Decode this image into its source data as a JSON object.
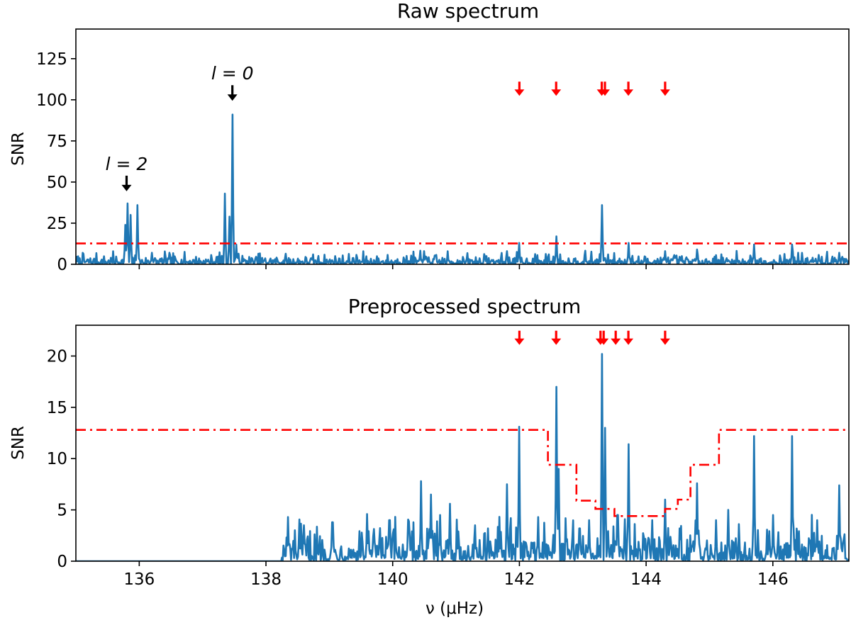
{
  "chart_data": [
    {
      "type": "line",
      "title": "Raw spectrum",
      "xlabel": "",
      "ylabel": "SNR",
      "xlim": [
        135,
        147.2
      ],
      "ylim": [
        0,
        143
      ],
      "xticks": [
        136,
        138,
        140,
        142,
        144,
        146
      ],
      "xtick_labels_shown": false,
      "yticks": [
        0,
        25,
        50,
        75,
        100,
        125
      ],
      "ytick_labels": [
        "0",
        "25",
        "50",
        "75",
        "100",
        "125"
      ],
      "grid": false,
      "series_color": "#1f77b4",
      "threshold": {
        "style": "dash-dot",
        "color": "#ff0000",
        "value": 12.7
      },
      "baseline": {
        "x_start": 135,
        "x_end": 147.2,
        "level": 2
      },
      "peaks": [
        {
          "x": 135.78,
          "y": 24
        },
        {
          "x": 135.82,
          "y": 37
        },
        {
          "x": 135.86,
          "y": 30
        },
        {
          "x": 135.97,
          "y": 36
        },
        {
          "x": 136.2,
          "y": 7
        },
        {
          "x": 137.35,
          "y": 43
        },
        {
          "x": 137.42,
          "y": 29
        },
        {
          "x": 137.47,
          "y": 91
        },
        {
          "x": 137.53,
          "y": 12
        },
        {
          "x": 140.5,
          "y": 8
        },
        {
          "x": 141.8,
          "y": 8
        },
        {
          "x": 142.0,
          "y": 13
        },
        {
          "x": 142.58,
          "y": 17
        },
        {
          "x": 143.3,
          "y": 36
        },
        {
          "x": 143.72,
          "y": 13
        },
        {
          "x": 144.3,
          "y": 8
        },
        {
          "x": 144.8,
          "y": 9
        },
        {
          "x": 145.7,
          "y": 12
        },
        {
          "x": 146.3,
          "y": 12
        },
        {
          "x": 147.05,
          "y": 7
        }
      ],
      "annotations": [
        {
          "text": "l = 2",
          "x": 135.8,
          "arrow_y": 50,
          "color": "#000000"
        },
        {
          "text": "l = 0",
          "x": 137.47,
          "arrow_y": 105,
          "color": "#000000"
        }
      ],
      "red_arrows": {
        "x": [
          142.0,
          142.58,
          143.3,
          143.35,
          143.72,
          144.3
        ],
        "y": 105,
        "color": "#ff0000"
      }
    },
    {
      "type": "line",
      "title": "Preprocessed spectrum",
      "xlabel": "ν (μHz)",
      "ylabel": "SNR",
      "xlim": [
        135,
        147.2
      ],
      "ylim": [
        0,
        23
      ],
      "xticks": [
        136,
        138,
        140,
        142,
        144,
        146
      ],
      "xtick_labels": [
        "136",
        "138",
        "140",
        "142",
        "144",
        "146"
      ],
      "yticks": [
        0,
        5,
        10,
        15,
        20
      ],
      "ytick_labels": [
        "0",
        "5",
        "10",
        "15",
        "20"
      ],
      "grid": false,
      "series_color": "#1f77b4",
      "zero_until": 138.25,
      "baseline": {
        "x_start": 138.25,
        "x_end": 147.1,
        "level": 1.2
      },
      "peaks": [
        {
          "x": 138.35,
          "y": 4.3
        },
        {
          "x": 138.6,
          "y": 3.5
        },
        {
          "x": 139.05,
          "y": 3.8
        },
        {
          "x": 139.6,
          "y": 4.6
        },
        {
          "x": 139.95,
          "y": 4.0
        },
        {
          "x": 140.25,
          "y": 3.9
        },
        {
          "x": 140.45,
          "y": 7.8
        },
        {
          "x": 140.6,
          "y": 6.5
        },
        {
          "x": 140.75,
          "y": 4.5
        },
        {
          "x": 140.9,
          "y": 5.6
        },
        {
          "x": 141.3,
          "y": 3.5
        },
        {
          "x": 141.5,
          "y": 3.2
        },
        {
          "x": 141.8,
          "y": 7.5
        },
        {
          "x": 142.0,
          "y": 13.1
        },
        {
          "x": 142.3,
          "y": 4.3
        },
        {
          "x": 142.58,
          "y": 17.0
        },
        {
          "x": 142.62,
          "y": 9.0
        },
        {
          "x": 142.95,
          "y": 3.2
        },
        {
          "x": 143.1,
          "y": 4.0
        },
        {
          "x": 143.3,
          "y": 20.2
        },
        {
          "x": 143.35,
          "y": 13.0
        },
        {
          "x": 143.55,
          "y": 4.5
        },
        {
          "x": 143.72,
          "y": 11.4
        },
        {
          "x": 144.1,
          "y": 4.0
        },
        {
          "x": 144.3,
          "y": 6.0
        },
        {
          "x": 144.8,
          "y": 7.6
        },
        {
          "x": 145.1,
          "y": 4.0
        },
        {
          "x": 145.3,
          "y": 5.0
        },
        {
          "x": 145.7,
          "y": 12.2
        },
        {
          "x": 146.0,
          "y": 4.5
        },
        {
          "x": 146.3,
          "y": 12.2
        },
        {
          "x": 146.7,
          "y": 4.0
        },
        {
          "x": 147.05,
          "y": 7.4
        }
      ],
      "threshold": {
        "style": "dash-dot",
        "color": "#ff0000",
        "steps": [
          {
            "x": 135.0,
            "y": 12.8
          },
          {
            "x": 142.45,
            "y": 9.4
          },
          {
            "x": 142.9,
            "y": 5.9
          },
          {
            "x": 143.2,
            "y": 5.1
          },
          {
            "x": 143.5,
            "y": 4.4
          },
          {
            "x": 144.3,
            "y": 5.1
          },
          {
            "x": 144.5,
            "y": 6.0
          },
          {
            "x": 144.7,
            "y": 9.4
          },
          {
            "x": 145.15,
            "y": 12.8
          },
          {
            "x": 147.2,
            "y": 12.8
          }
        ]
      },
      "red_arrows": {
        "x": [
          142.0,
          142.58,
          143.28,
          143.33,
          143.52,
          143.72,
          144.3
        ],
        "y": 21.5,
        "color": "#ff0000"
      }
    }
  ]
}
